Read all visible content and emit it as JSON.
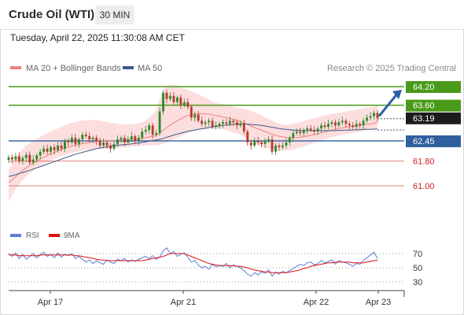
{
  "header": {
    "title": "Crude Oil (WTI)",
    "timeframe": "30 MIN"
  },
  "timestamp": "Tuesday, April 22, 2025 11:30:08 AM CET",
  "chart_data": [
    {
      "type": "candlestick",
      "legend": [
        {
          "label": "MA 20 + Bollinger Bands",
          "color": "#f08080"
        },
        {
          "label": "MA 50",
          "color": "#3a5a8c"
        }
      ],
      "credit": "Research © 2025 Trading Central",
      "ylim": [
        60.4,
        64.6
      ],
      "x_ticks": [
        "Apr 17",
        "Apr 21",
        "Apr 22",
        "Apr 23"
      ],
      "current_price": "63.19",
      "levels": [
        {
          "label": "64.20",
          "value": 64.2,
          "color": "#4a9a1a",
          "style": "boxed"
        },
        {
          "label": "63.60",
          "value": 63.6,
          "color": "#4a9a1a",
          "style": "boxed"
        },
        {
          "label": "62.45",
          "value": 62.45,
          "color": "#2f5f9f",
          "style": "boxed"
        },
        {
          "label": "61.80",
          "value": 61.8,
          "color": "#d02020",
          "style": "plain"
        },
        {
          "label": "61.00",
          "value": 61.0,
          "color": "#d02020",
          "style": "plain"
        }
      ],
      "close": [
        61.92,
        61.85,
        61.95,
        61.8,
        61.9,
        62.0,
        61.75,
        61.85,
        61.98,
        62.1,
        62.2,
        62.1,
        62.25,
        62.15,
        62.3,
        62.2,
        62.45,
        62.4,
        62.55,
        62.35,
        62.5,
        62.65,
        62.6,
        62.5,
        62.55,
        62.45,
        62.3,
        62.4,
        62.3,
        62.2,
        62.35,
        62.5,
        62.55,
        62.4,
        62.5,
        62.6,
        62.45,
        62.55,
        62.75,
        62.8,
        62.95,
        62.65,
        62.7,
        63.4,
        64.0,
        63.8,
        63.9,
        63.7,
        63.85,
        63.6,
        63.7,
        63.55,
        63.2,
        63.3,
        63.1,
        63.0,
        63.05,
        63.1,
        62.9,
        62.95,
        63.0,
        63.05,
        63.0,
        63.1,
        63.05,
        62.95,
        63.0,
        62.75,
        62.4,
        62.3,
        62.45,
        62.4,
        62.35,
        62.45,
        62.5,
        62.1,
        62.3,
        62.25,
        62.3,
        62.4,
        62.55,
        62.7,
        62.75,
        62.7,
        62.8,
        62.85,
        62.8,
        62.75,
        62.85,
        62.95,
        62.9,
        63.0,
        63.05,
        62.95,
        63.05,
        63.1,
        63.0,
        62.95,
        62.9,
        63.0,
        62.95,
        63.1,
        63.2,
        63.25,
        63.35,
        63.19
      ],
      "ma50": [
        61.3,
        61.33,
        61.36,
        61.4,
        61.43,
        61.47,
        61.5,
        61.54,
        61.58,
        61.62,
        61.66,
        61.7,
        61.74,
        61.78,
        61.82,
        61.86,
        61.9,
        61.94,
        61.98,
        62.02,
        62.05,
        62.08,
        62.11,
        62.14,
        62.17,
        62.2,
        62.22,
        62.24,
        62.26,
        62.28,
        62.3,
        62.31,
        62.32,
        62.33,
        62.34,
        62.35,
        62.37,
        62.38,
        62.4,
        62.42,
        62.44,
        62.46,
        62.48,
        62.5,
        62.53,
        62.57,
        62.6,
        62.64,
        62.67,
        62.7,
        62.73,
        62.76,
        62.78,
        62.8,
        62.82,
        62.84,
        62.86,
        62.88,
        62.9,
        62.92,
        62.93,
        62.95,
        62.96,
        62.97,
        62.98,
        62.99,
        63.0,
        63.0,
        62.99,
        62.98,
        62.97,
        62.96,
        62.95,
        62.93,
        62.91,
        62.89,
        62.87,
        62.85,
        62.83,
        62.82,
        62.81,
        62.8,
        62.79,
        62.79,
        62.78,
        62.78,
        62.78,
        62.78,
        62.78,
        62.78,
        62.78,
        62.78,
        62.78,
        62.78,
        62.79,
        62.79,
        62.8,
        62.8,
        62.8,
        62.81,
        62.81,
        62.82,
        62.82,
        62.82,
        62.83,
        62.83
      ],
      "ma20": [
        61.1,
        61.2,
        61.3,
        61.4,
        61.5,
        61.58,
        61.66,
        61.73,
        61.8,
        61.86,
        61.92,
        61.98,
        62.03,
        62.08,
        62.13,
        62.17,
        62.21,
        62.25,
        62.28,
        62.31,
        62.34,
        62.36,
        62.38,
        62.4,
        62.42,
        62.43,
        62.44,
        62.45,
        62.45,
        62.45,
        62.45,
        62.46,
        62.47,
        62.48,
        62.49,
        62.5,
        62.5,
        62.51,
        62.53,
        62.55,
        62.58,
        62.6,
        62.62,
        62.7,
        62.8,
        62.88,
        62.96,
        63.03,
        63.1,
        63.16,
        63.22,
        63.27,
        63.3,
        63.32,
        63.33,
        63.33,
        63.32,
        63.31,
        63.29,
        63.27,
        63.25,
        63.22,
        63.2,
        63.17,
        63.14,
        63.11,
        63.07,
        63.03,
        62.98,
        62.93,
        62.88,
        62.84,
        62.79,
        62.75,
        62.71,
        62.67,
        62.63,
        62.6,
        62.58,
        62.56,
        62.55,
        62.55,
        62.56,
        62.57,
        62.59,
        62.61,
        62.63,
        62.65,
        62.68,
        62.71,
        62.74,
        62.77,
        62.8,
        62.82,
        62.85,
        62.87,
        62.89,
        62.91,
        62.92,
        62.94,
        62.95,
        62.97,
        62.98,
        63.0,
        63.02,
        63.05
      ],
      "bb_upper": [
        61.5,
        61.7,
        61.9,
        62.05,
        62.2,
        62.3,
        62.38,
        62.45,
        62.52,
        62.58,
        62.64,
        62.7,
        62.75,
        62.8,
        62.85,
        62.9,
        62.95,
        63.0,
        63.03,
        63.06,
        63.09,
        63.1,
        63.11,
        63.12,
        63.13,
        63.12,
        63.1,
        63.08,
        63.06,
        63.04,
        63.02,
        63.0,
        62.99,
        62.98,
        62.98,
        62.99,
        63.0,
        63.02,
        63.05,
        63.1,
        63.2,
        63.3,
        63.45,
        63.8,
        64.1,
        64.2,
        64.25,
        64.25,
        64.22,
        64.18,
        64.14,
        64.1,
        64.05,
        64.0,
        63.95,
        63.9,
        63.85,
        63.78,
        63.72,
        63.68,
        63.65,
        63.62,
        63.6,
        63.58,
        63.55,
        63.52,
        63.5,
        63.48,
        63.45,
        63.42,
        63.38,
        63.33,
        63.28,
        63.22,
        63.16,
        63.1,
        63.05,
        63.0,
        62.98,
        62.96,
        62.98,
        63.0,
        63.03,
        63.06,
        63.09,
        63.12,
        63.15,
        63.18,
        63.21,
        63.24,
        63.27,
        63.3,
        63.32,
        63.34,
        63.36,
        63.38,
        63.4,
        63.42,
        63.44,
        63.46,
        63.48,
        63.5,
        63.52,
        63.54,
        63.56,
        63.58
      ],
      "bb_lower": [
        60.5,
        60.7,
        60.9,
        61.05,
        61.18,
        61.3,
        61.4,
        61.48,
        61.56,
        61.63,
        61.7,
        61.76,
        61.82,
        61.87,
        61.92,
        61.96,
        62.0,
        62.03,
        62.06,
        62.09,
        62.11,
        62.13,
        62.15,
        62.17,
        62.18,
        62.19,
        62.2,
        62.21,
        62.21,
        62.21,
        62.21,
        62.22,
        62.23,
        62.24,
        62.25,
        62.26,
        62.27,
        62.28,
        62.29,
        62.3,
        62.3,
        62.3,
        62.3,
        62.32,
        62.36,
        62.4,
        62.45,
        62.5,
        62.55,
        62.6,
        62.65,
        62.7,
        62.74,
        62.78,
        62.8,
        62.82,
        62.83,
        62.84,
        62.85,
        62.85,
        62.84,
        62.82,
        62.8,
        62.77,
        62.73,
        62.69,
        62.64,
        62.58,
        62.51,
        62.44,
        62.38,
        62.32,
        62.27,
        62.23,
        62.2,
        62.18,
        62.16,
        62.14,
        62.14,
        62.14,
        62.15,
        62.17,
        62.2,
        62.23,
        62.27,
        62.31,
        62.35,
        62.39,
        62.43,
        62.47,
        62.5,
        62.53,
        62.56,
        62.59,
        62.62,
        62.65,
        62.67,
        62.69,
        62.71,
        62.73,
        62.75,
        62.77,
        62.79,
        62.81,
        62.83,
        62.85
      ],
      "projection": {
        "from": 63.25,
        "to": 64.2
      }
    },
    {
      "type": "line",
      "legend": [
        {
          "label": "RSI",
          "color": "#5b7fd8"
        },
        {
          "label": "9MA",
          "color": "#dd1111"
        }
      ],
      "levels": [
        {
          "label": "70",
          "value": 70
        },
        {
          "label": "50",
          "value": 50
        },
        {
          "label": "30",
          "value": 30
        }
      ],
      "ylim": [
        20,
        80
      ],
      "rsi": [
        70,
        66,
        71,
        63,
        69,
        62,
        66,
        70,
        64,
        68,
        72,
        66,
        69,
        64,
        71,
        65,
        69,
        67,
        70,
        63,
        66,
        62,
        58,
        61,
        56,
        60,
        57,
        55,
        61,
        58,
        56,
        62,
        60,
        63,
        58,
        61,
        59,
        62,
        64,
        66,
        63,
        67,
        62,
        65,
        74,
        78,
        70,
        73,
        66,
        69,
        71,
        65,
        58,
        60,
        54,
        50,
        52,
        48,
        55,
        51,
        53,
        52,
        56,
        50,
        54,
        52,
        50,
        46,
        41,
        38,
        43,
        40,
        44,
        42,
        47,
        38,
        44,
        41,
        45,
        43,
        46,
        49,
        52,
        55,
        53,
        57,
        58,
        54,
        56,
        60,
        57,
        59,
        61,
        55,
        60,
        58,
        57,
        55,
        52,
        56,
        55,
        60,
        64,
        68,
        72,
        63
      ],
      "ma9": [
        68,
        68,
        68,
        67,
        67,
        67,
        67,
        67,
        67,
        68,
        68,
        68,
        68,
        68,
        68,
        68,
        68,
        68,
        68,
        67,
        67,
        66,
        65,
        64,
        63,
        62,
        61,
        61,
        60,
        60,
        60,
        60,
        60,
        60,
        60,
        60,
        60,
        60,
        60,
        61,
        62,
        63,
        64,
        65,
        66,
        68,
        70,
        70,
        70,
        70,
        70,
        68,
        66,
        64,
        62,
        60,
        58,
        56,
        55,
        54,
        53,
        53,
        53,
        53,
        53,
        52,
        52,
        51,
        50,
        48,
        47,
        46,
        45,
        44,
        44,
        43,
        43,
        43,
        43,
        43,
        44,
        45,
        46,
        47,
        49,
        50,
        52,
        53,
        54,
        55,
        56,
        57,
        57,
        58,
        58,
        58,
        58,
        58,
        57,
        57,
        57,
        57,
        58,
        59,
        60,
        61
      ]
    }
  ]
}
